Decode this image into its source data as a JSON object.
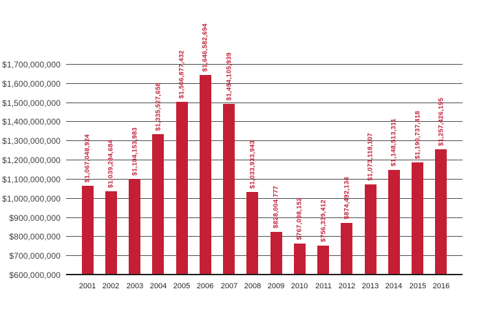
{
  "chart_data": {
    "type": "bar",
    "title": "",
    "xlabel": "",
    "ylabel": "",
    "legend_position": "none",
    "grid": true,
    "categories": [
      "2001",
      "2002",
      "2003",
      "2004",
      "2005",
      "2006",
      "2007",
      "2008",
      "2009",
      "2010",
      "2011",
      "2012",
      "2013",
      "2014",
      "2015",
      "2016"
    ],
    "values": [
      1067048924,
      1039284684,
      1104153983,
      1335527658,
      1506877432,
      1646582694,
      1494105939,
      1033933943,
      828004777,
      767098152,
      756339412,
      874492134,
      1073118107,
      1148513311,
      1190737418,
      1257426195
    ],
    "value_labels": [
      "$1,067,048,924",
      "$1,039,284,684",
      "$1,104,153,983",
      "$1,335,527,658",
      "$1,506,877,432",
      "$1,646,582,694",
      "$1,494,105,939",
      "$1,033,933,943",
      "$828,004,777",
      "$767,098,152",
      "$756,339,412",
      "$874,492,134",
      "$1,073,118,107",
      "$1,148,513,311",
      "$1,190,737,418",
      "$1,257,426,195"
    ],
    "ylim": [
      600000000,
      1700000000
    ],
    "ytick_step": 100000000,
    "yticks": [
      {
        "value": 1700000000,
        "label": "$1,700,000,000"
      },
      {
        "value": 1600000000,
        "label": "$1,600,000,000"
      },
      {
        "value": 1500000000,
        "label": "$1,500,000,000"
      },
      {
        "value": 1400000000,
        "label": "$1,400,000,000"
      },
      {
        "value": 1300000000,
        "label": "$1,300,000,000"
      },
      {
        "value": 1200000000,
        "label": "$1,200,000,000"
      },
      {
        "value": 1100000000,
        "label": "$1,100,000,000"
      },
      {
        "value": 1000000000,
        "label": "$1,000,000,000"
      },
      {
        "value": 900000000,
        "label": "$900,000,000"
      },
      {
        "value": 800000000,
        "label": "$800,000,000"
      },
      {
        "value": 700000000,
        "label": "$700,000,000"
      },
      {
        "value": 600000000,
        "label": "$600,000,000"
      }
    ],
    "colors": {
      "bar": "#C41F35",
      "value_label": "#C41F35",
      "gridline": "#4d4e50",
      "axis_line": "#1e1c1d",
      "y_tick_label": "#414042",
      "x_tick_label": "#242224",
      "background": "#ffffff"
    }
  }
}
